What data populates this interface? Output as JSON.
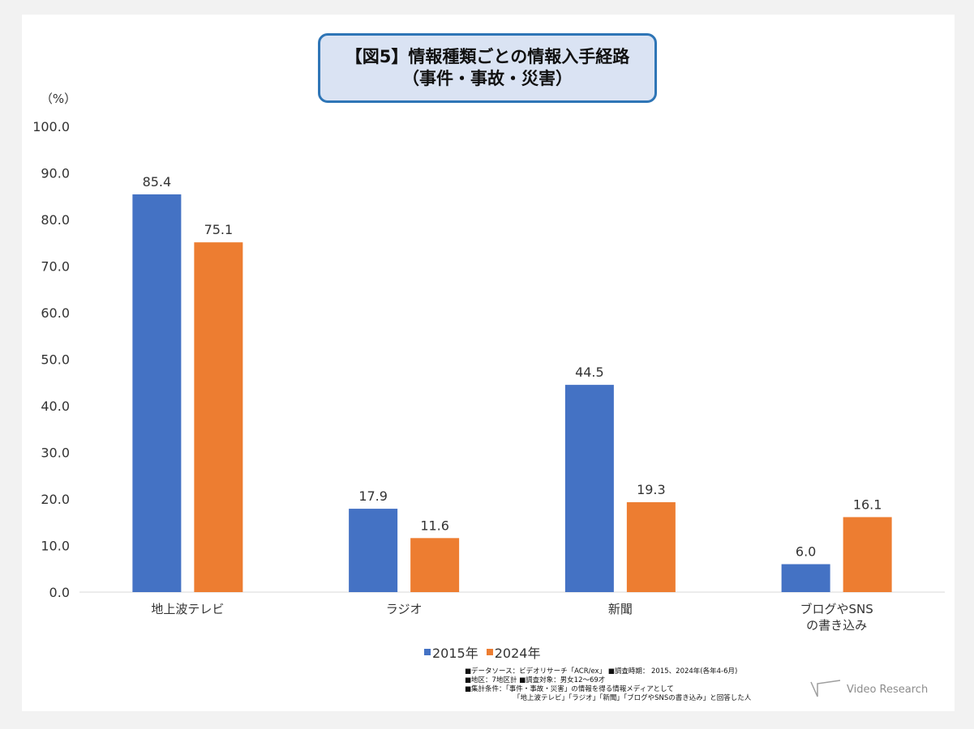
{
  "title": {
    "line1": "【図5】情報種類ごとの情報入手経路",
    "line2": "（事件・事故・災害）"
  },
  "colors": {
    "series2015": "#4472c4",
    "series2024": "#ed7d31"
  },
  "legend": [
    {
      "label": "2015年",
      "color": "#4472c4"
    },
    {
      "label": "2024年",
      "color": "#ed7d31"
    }
  ],
  "notes": [
    "■データソース：ビデオリサーチ「ACR/ex」 ■調査時期： 2015、2024年(各年4-6月)",
    "■地区：7地区計 ■調査対象：男女12～69才",
    "■集計条件：「事件・事故・災害」の情報を得る情報メディアとして",
    "「地上波テレビ」「ラジオ」「新聞」「ブログやSNSの書き込み」と回答した人"
  ],
  "logo": {
    "text": "Video Research"
  },
  "chart_data": {
    "type": "bar",
    "title": "【図5】情報種類ごとの情報入手経路（事件・事故・災害）",
    "ylabel": "（%）",
    "xlabel": "",
    "ylim": [
      0,
      100
    ],
    "yticks": [
      "0.0",
      "10.0",
      "20.0",
      "30.0",
      "40.0",
      "50.0",
      "60.0",
      "70.0",
      "80.0",
      "90.0",
      "100.0"
    ],
    "categories": [
      [
        "地上波テレビ"
      ],
      [
        "ラジオ"
      ],
      [
        "新聞"
      ],
      [
        "ブログやSNS",
        "の書き込み"
      ]
    ],
    "series": [
      {
        "name": "2015年",
        "values": [
          85.4,
          17.9,
          44.5,
          6.0
        ],
        "labels": [
          "85.4",
          "17.9",
          "44.5",
          "6.0"
        ]
      },
      {
        "name": "2024年",
        "values": [
          75.1,
          11.6,
          19.3,
          16.1
        ],
        "labels": [
          "75.1",
          "11.6",
          "19.3",
          "16.1"
        ]
      }
    ],
    "grid": false,
    "legend_position": "bottom"
  }
}
